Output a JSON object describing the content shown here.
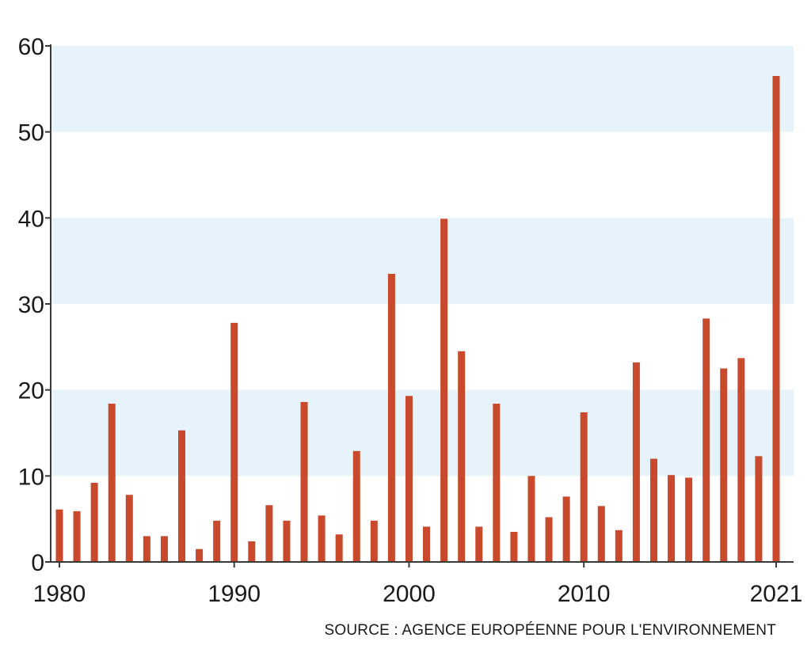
{
  "chart_data": {
    "type": "bar",
    "x": [
      1980,
      1981,
      1982,
      1983,
      1984,
      1985,
      1986,
      1987,
      1988,
      1989,
      1990,
      1991,
      1992,
      1993,
      1994,
      1995,
      1996,
      1997,
      1998,
      1999,
      2000,
      2001,
      2002,
      2003,
      2004,
      2005,
      2006,
      2007,
      2008,
      2009,
      2010,
      2011,
      2012,
      2013,
      2014,
      2015,
      2016,
      2017,
      2018,
      2019,
      2020,
      2021
    ],
    "values": [
      6.1,
      5.9,
      9.2,
      18.4,
      7.8,
      3.0,
      3.0,
      15.3,
      1.5,
      4.8,
      27.8,
      2.4,
      6.6,
      4.8,
      18.6,
      5.4,
      3.2,
      12.9,
      4.8,
      33.5,
      19.3,
      4.1,
      39.9,
      24.5,
      4.1,
      18.4,
      3.5,
      10.0,
      5.2,
      7.6,
      17.4,
      6.5,
      3.7,
      23.2,
      12.0,
      10.1,
      9.8,
      28.3,
      22.5,
      23.7,
      12.3,
      56.5
    ],
    "x_tick_labels": [
      "1980",
      "1990",
      "2000",
      "2010",
      "2021"
    ],
    "x_tick_values": [
      1980,
      1990,
      2000,
      2010,
      2021
    ],
    "y_ticks": [
      0,
      10,
      20,
      30,
      40,
      50,
      60
    ],
    "ylim": [
      0,
      60
    ],
    "bar_color": "#c8492b",
    "band_color": "#e6f3fa",
    "grid": false
  },
  "source": "SOURCE :  AGENCE EUROPÉENNE POUR L'ENVIRONNEMENT"
}
